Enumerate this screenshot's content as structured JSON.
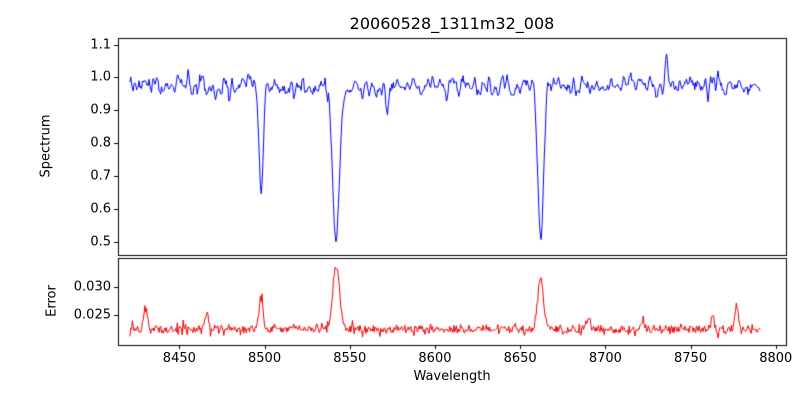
{
  "chart_data": {
    "type": "line",
    "title": "20060528_1311m32_008",
    "xlabel": "Wavelength",
    "x_ticks": [
      8450,
      8500,
      8550,
      8600,
      8650,
      8700,
      8750,
      8800
    ],
    "x_tick_labels": [
      "8450",
      "8500",
      "8550",
      "8600",
      "8650",
      "8700",
      "8750",
      "8800"
    ],
    "xlim": [
      8414,
      8806
    ],
    "x_range": [
      8421,
      8791
    ],
    "n_points": 760,
    "seed": 20060528,
    "grid": false,
    "legend": "none",
    "subplots": [
      {
        "name": "spectrum",
        "ylabel": "Spectrum",
        "color": "#0000ee",
        "ylim": [
          0.46,
          1.12
        ],
        "y_ticks": [
          0.5,
          0.6,
          0.7,
          0.8,
          0.9,
          1.0,
          1.1
        ],
        "y_tick_labels": [
          "0.5",
          "0.6",
          "0.7",
          "0.8",
          "0.9",
          "1.0",
          "1.1"
        ],
        "continuum": 0.972,
        "noise": 0.02,
        "absorption_lines": [
          {
            "center": 8498,
            "depth": 0.315,
            "sigma": 1.2
          },
          {
            "center": 8542,
            "depth": 0.485,
            "sigma": 2.0
          },
          {
            "center": 8662,
            "depth": 0.465,
            "sigma": 1.6
          }
        ],
        "spikes": [
          {
            "center": 8736,
            "height": 0.1,
            "sigma": 0.8
          },
          {
            "center": 8572,
            "height": -0.06,
            "sigma": 0.9
          }
        ]
      },
      {
        "name": "error",
        "ylabel": "Error",
        "color": "#ee0000",
        "ylim": [
          0.0197,
          0.0352
        ],
        "y_ticks": [
          0.025,
          0.03
        ],
        "y_tick_labels": [
          "0.025",
          "0.030"
        ],
        "baseline": 0.0225,
        "noise": 0.00045,
        "peaks": [
          {
            "center": 8430,
            "height": 0.0042,
            "sigma": 1.0
          },
          {
            "center": 8466,
            "height": 0.003,
            "sigma": 0.9
          },
          {
            "center": 8498,
            "height": 0.0058,
            "sigma": 1.2
          },
          {
            "center": 8542,
            "height": 0.0112,
            "sigma": 2.0
          },
          {
            "center": 8662,
            "height": 0.0095,
            "sigma": 1.6
          },
          {
            "center": 8690,
            "height": 0.0022,
            "sigma": 0.9
          },
          {
            "center": 8722,
            "height": 0.002,
            "sigma": 0.9
          },
          {
            "center": 8763,
            "height": 0.0022,
            "sigma": 0.8
          },
          {
            "center": 8777,
            "height": 0.0048,
            "sigma": 0.9
          }
        ]
      }
    ]
  }
}
